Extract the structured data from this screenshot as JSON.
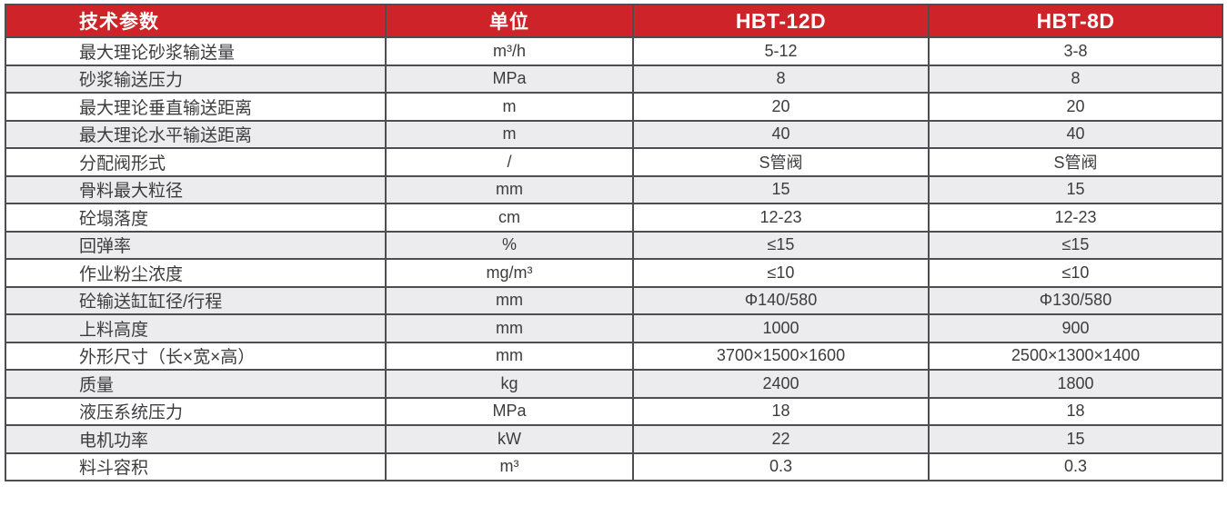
{
  "colors": {
    "header_bg": "#cd2329",
    "header_text": "#ffffff",
    "row_alt_bg": "#ececee",
    "border": "#4e4e52",
    "text": "#3c3c3e"
  },
  "table": {
    "headers": [
      "技术参数",
      "单位",
      "HBT-12D",
      "HBT-8D"
    ],
    "rows": [
      {
        "cells": [
          "最大理论砂浆输送量",
          "m³/h",
          "5-12",
          "3-8"
        ],
        "shaded": false
      },
      {
        "cells": [
          "砂浆输送压力",
          "MPa",
          "8",
          "8"
        ],
        "shaded": true
      },
      {
        "cells": [
          "最大理论垂直输送距离",
          "m",
          "20",
          "20"
        ],
        "shaded": false
      },
      {
        "cells": [
          "最大理论水平输送距离",
          "m",
          "40",
          "40"
        ],
        "shaded": true
      },
      {
        "cells": [
          "分配阀形式",
          "/",
          "S管阀",
          "S管阀"
        ],
        "shaded": false
      },
      {
        "cells": [
          "骨料最大粒径",
          "mm",
          "15",
          "15"
        ],
        "shaded": true
      },
      {
        "cells": [
          "砼塌落度",
          "cm",
          "12-23",
          "12-23"
        ],
        "shaded": false
      },
      {
        "cells": [
          "回弹率",
          "%",
          "≤15",
          "≤15"
        ],
        "shaded": true
      },
      {
        "cells": [
          "作业粉尘浓度",
          "mg/m³",
          "≤10",
          "≤10"
        ],
        "shaded": false
      },
      {
        "cells": [
          "砼输送缸缸径/行程",
          "mm",
          "Φ140/580",
          "Φ130/580"
        ],
        "shaded": true
      },
      {
        "cells": [
          "上料高度",
          "mm",
          "1000",
          "900"
        ],
        "shaded": true
      },
      {
        "cells": [
          "外形尺寸（长×宽×高）",
          "mm",
          "3700×1500×1600",
          "2500×1300×1400"
        ],
        "shaded": false
      },
      {
        "cells": [
          "质量",
          "kg",
          "2400",
          "1800"
        ],
        "shaded": true
      },
      {
        "cells": [
          "液压系统压力",
          "MPa",
          "18",
          "18"
        ],
        "shaded": false
      },
      {
        "cells": [
          "电机功率",
          "kW",
          "22",
          "15"
        ],
        "shaded": true
      },
      {
        "cells": [
          "料斗容积",
          "m³",
          "0.3",
          "0.3"
        ],
        "shaded": false
      }
    ]
  }
}
